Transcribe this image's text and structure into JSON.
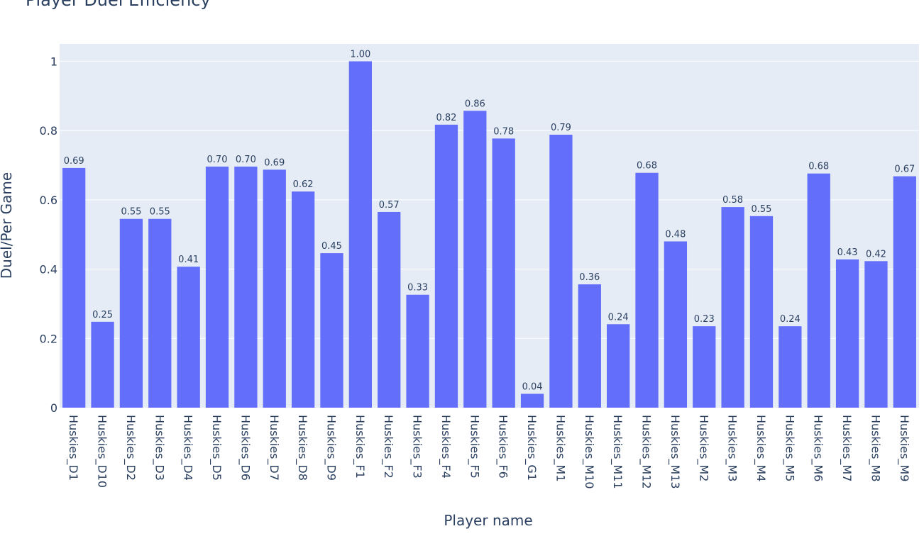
{
  "chart_data": {
    "type": "bar",
    "title": "Player Duel Efficiency",
    "xlabel": "Player name",
    "ylabel": "Duel/Per Game",
    "ylim": [
      0,
      1.05
    ],
    "yticks": [
      0,
      0.2,
      0.4,
      0.6,
      0.8,
      1
    ],
    "ytick_labels": [
      "0",
      "0.2",
      "0.4",
      "0.6",
      "0.8",
      "1"
    ],
    "grid": true,
    "bar_color": "#636efa",
    "plot_bg": "#e5ecf6",
    "categories": [
      "Huskies_D1",
      "Huskies_D10",
      "Huskies_D2",
      "Huskies_D3",
      "Huskies_D4",
      "Huskies_D5",
      "Huskies_D6",
      "Huskies_D7",
      "Huskies_D8",
      "Huskies_D9",
      "Huskies_F1",
      "Huskies_F2",
      "Huskies_F3",
      "Huskies_F4",
      "Huskies_F5",
      "Huskies_F6",
      "Huskies_G1",
      "Huskies_M1",
      "Huskies_M10",
      "Huskies_M11",
      "Huskies_M12",
      "Huskies_M13",
      "Huskies_M2",
      "Huskies_M3",
      "Huskies_M4",
      "Huskies_M5",
      "Huskies_M6",
      "Huskies_M7",
      "Huskies_M8",
      "Huskies_M9"
    ],
    "values": [
      0.692,
      0.248,
      0.545,
      0.545,
      0.407,
      0.696,
      0.696,
      0.687,
      0.624,
      0.446,
      1.0,
      0.565,
      0.326,
      0.817,
      0.857,
      0.777,
      0.04,
      0.788,
      0.356,
      0.241,
      0.678,
      0.48,
      0.235,
      0.579,
      0.553,
      0.235,
      0.676,
      0.428,
      0.423,
      0.668
    ],
    "labels": [
      "0.69",
      "0.25",
      "0.55",
      "0.55",
      "0.41",
      "0.70",
      "0.70",
      "0.69",
      "0.62",
      "0.45",
      "1.00",
      "0.57",
      "0.33",
      "0.82",
      "0.86",
      "0.78",
      "0.04",
      "0.79",
      "0.36",
      "0.24",
      "0.68",
      "0.48",
      "0.23",
      "0.58",
      "0.55",
      "0.24",
      "0.68",
      "0.43",
      "0.42",
      "0.67"
    ]
  }
}
